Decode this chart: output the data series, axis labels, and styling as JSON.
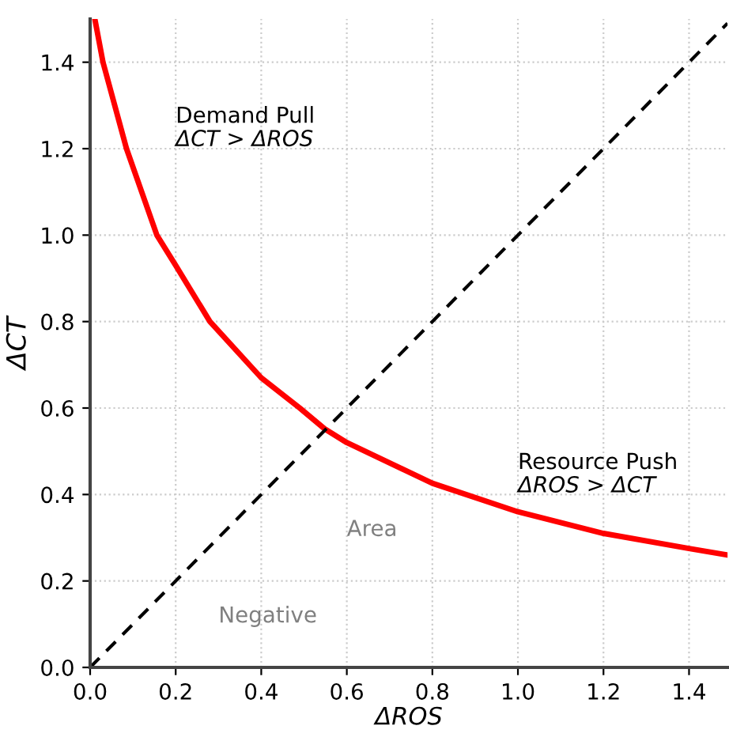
{
  "chart_data": {
    "type": "line",
    "xlabel": "ΔROS",
    "ylabel": "ΔCT",
    "xlim": [
      0,
      1.49
    ],
    "ylim": [
      0,
      1.5
    ],
    "xticks": [
      {
        "value": 0,
        "label": "0.0"
      },
      0.2,
      0.4,
      0.6,
      0.8,
      {
        "value": 1,
        "label": "1.0"
      },
      1.2,
      1.4
    ],
    "yticks": [
      {
        "value": 0,
        "label": "0.0"
      },
      0.2,
      0.4,
      0.6,
      0.8,
      {
        "value": 1,
        "label": "1.0"
      },
      1.2,
      1.4
    ],
    "grid": true,
    "series": [
      {
        "color": "#ff0000",
        "line_style": "solid",
        "x": [
          0.011,
          0.03,
          0.085,
          0.156,
          0.2,
          0.28,
          0.4,
          0.49,
          0.548,
          0.6,
          0.8,
          1.0,
          1.2,
          1.4,
          1.49
        ],
        "values": [
          1.5,
          1.4,
          1.2,
          1.0,
          0.93,
          0.8,
          0.67,
          0.6,
          0.552,
          0.52,
          0.426,
          0.36,
          0.31,
          0.275,
          0.26
        ]
      },
      {
        "color": "#000000",
        "line_style": "dashed",
        "x": [
          0,
          1.49
        ],
        "values": [
          0,
          1.49
        ]
      }
    ],
    "annotations": [
      "Demand Pull",
      "ΔCT > ΔROS",
      "Resource Push",
      "ΔROS > ΔCT",
      "Area",
      "Negative"
    ]
  }
}
